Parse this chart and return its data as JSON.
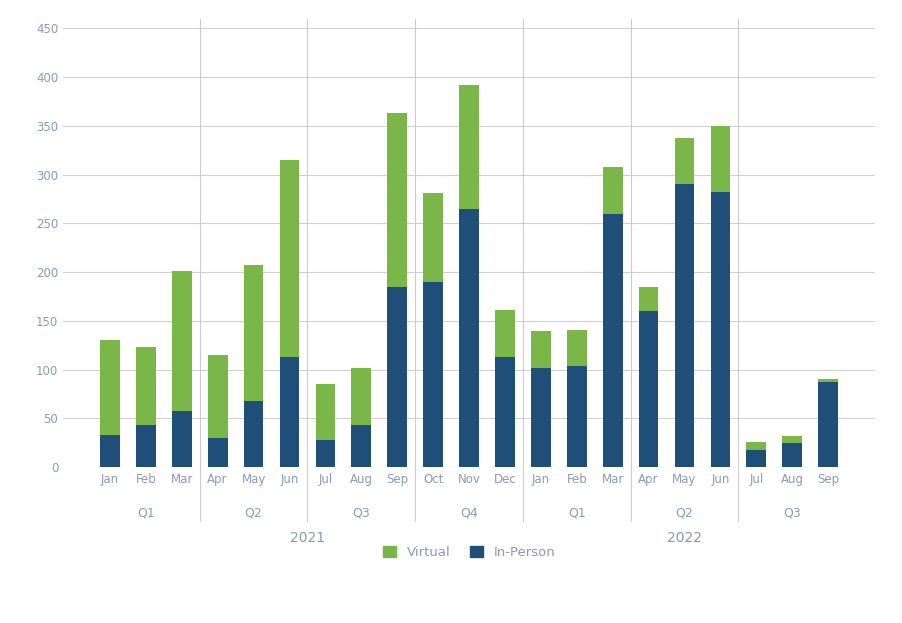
{
  "months": [
    "Jan",
    "Feb",
    "Mar",
    "Apr",
    "May",
    "Jun",
    "Jul",
    "Aug",
    "Sep",
    "Oct",
    "Nov",
    "Dec",
    "Jan",
    "Feb",
    "Mar",
    "Apr",
    "May",
    "Jun",
    "Jul",
    "Aug",
    "Sep"
  ],
  "quarters": [
    "Q1",
    "Q1",
    "Q1",
    "Q2",
    "Q2",
    "Q2",
    "Q3",
    "Q3",
    "Q3",
    "Q4",
    "Q4",
    "Q4",
    "Q1",
    "Q1",
    "Q1",
    "Q2",
    "Q2",
    "Q2",
    "Q3",
    "Q3",
    "Q3"
  ],
  "years": [
    "2021",
    "2021",
    "2021",
    "2021",
    "2021",
    "2021",
    "2021",
    "2021",
    "2021",
    "2021",
    "2021",
    "2021",
    "2022",
    "2022",
    "2022",
    "2022",
    "2022",
    "2022",
    "2022",
    "2022",
    "2022"
  ],
  "inperson": [
    33,
    43,
    58,
    30,
    68,
    113,
    28,
    43,
    185,
    190,
    265,
    113,
    102,
    104,
    260,
    160,
    290,
    282,
    18,
    25,
    87
  ],
  "virtual": [
    97,
    80,
    143,
    85,
    139,
    202,
    57,
    59,
    178,
    91,
    127,
    48,
    38,
    37,
    48,
    25,
    48,
    68,
    8,
    7,
    4
  ],
  "virtual_color": "#7ab648",
  "inperson_color": "#1f4e79",
  "background_color": "#ffffff",
  "gridline_color": "#d0d0d0",
  "ylim": [
    0,
    460
  ],
  "yticks": [
    0,
    50,
    100,
    150,
    200,
    250,
    300,
    350,
    400,
    450
  ],
  "bar_width": 0.55,
  "tick_color": "#8a9bb0",
  "label_fontsize": 8.5,
  "quarter_fontsize": 9,
  "year_fontsize": 10
}
